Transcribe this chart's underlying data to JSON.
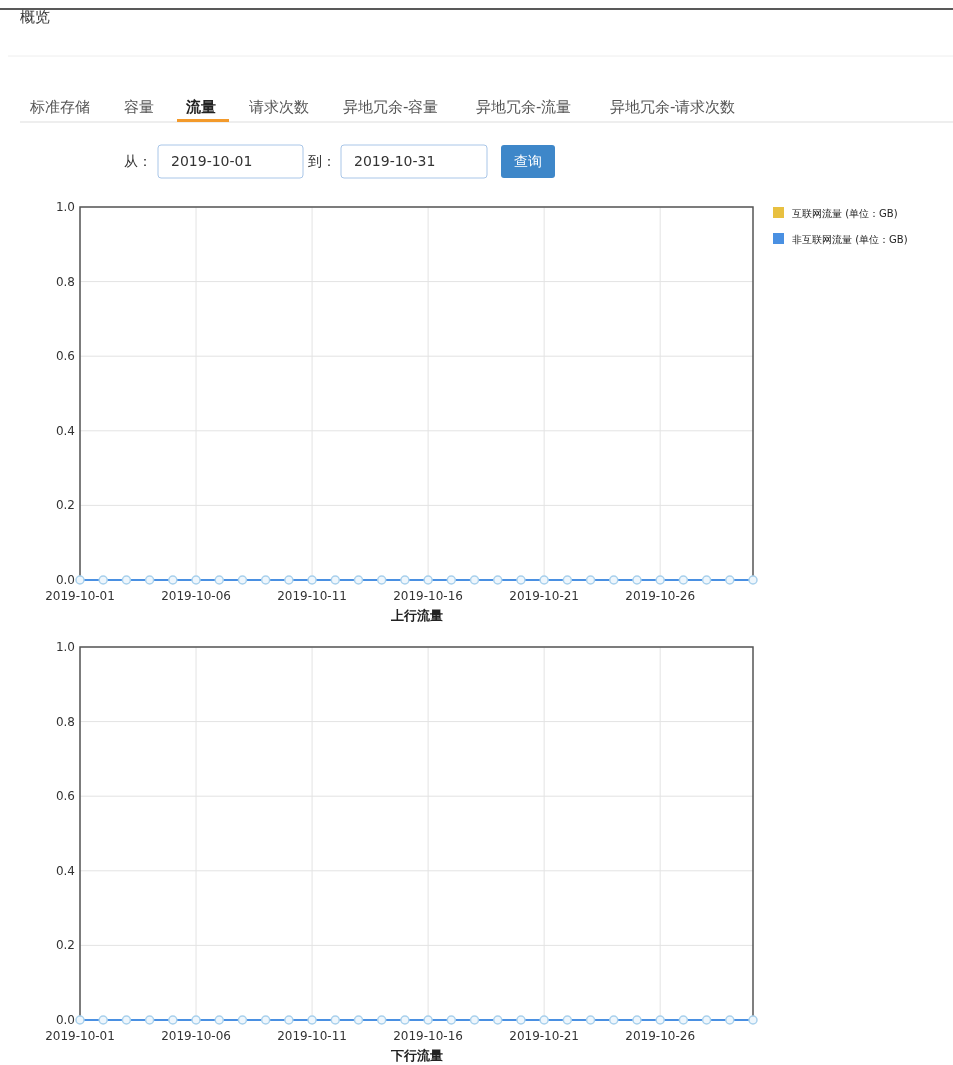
{
  "chart_data": [
    {
      "type": "line",
      "title": "概览",
      "annotations": [
        "标准存储",
        "容量",
        "流量",
        "请求次数",
        "异地冗余-容量",
        "异地冗余-流量",
        "异地冗余-请求次数",
        "从：",
        "2019-10-01",
        "到：",
        "2019-10-31",
        "查询"
      ],
      "xlabel": "上行流量",
      "x": [
        "2019-10-01",
        "2019-10-02",
        "2019-10-03",
        "2019-10-04",
        "2019-10-05",
        "2019-10-06",
        "2019-10-07",
        "2019-10-08",
        "2019-10-09",
        "2019-10-10",
        "2019-10-11",
        "2019-10-12",
        "2019-10-13",
        "2019-10-14",
        "2019-10-15",
        "2019-10-16",
        "2019-10-17",
        "2019-10-18",
        "2019-10-19",
        "2019-10-20",
        "2019-10-21",
        "2019-10-22",
        "2019-10-23",
        "2019-10-24",
        "2019-10-25",
        "2019-10-26",
        "2019-10-27",
        "2019-10-28",
        "2019-10-29",
        "2019-10-30"
      ],
      "series": [
        {
          "name": "互联网流量 (单位：GB)",
          "color": "#e8c040",
          "values": [
            null,
            null,
            null,
            null,
            null,
            null,
            null,
            null,
            null,
            null,
            null,
            null,
            null,
            null,
            null,
            null,
            null,
            null,
            null,
            null,
            null,
            null,
            null,
            null,
            null,
            null,
            null,
            null,
            null,
            null
          ]
        },
        {
          "name": "非互联网流量 (单位：GB)",
          "color": "#4a90e2",
          "values": [
            0,
            0,
            0,
            0,
            0,
            0,
            0,
            0,
            0,
            0,
            0,
            0,
            0,
            0,
            0,
            0,
            0,
            0,
            0,
            0,
            0,
            0,
            0,
            0,
            0,
            0,
            0,
            0,
            0,
            0
          ]
        }
      ],
      "xlim": [
        "2019-10-01",
        "2019-10-30"
      ],
      "xticks": [
        "2019-10-01",
        "2019-10-06",
        "2019-10-11",
        "2019-10-16",
        "2019-10-21",
        "2019-10-26"
      ],
      "ylim": [
        0,
        1
      ],
      "yticks": [
        {
          "value": 0,
          "label": "0.0"
        },
        {
          "value": 0.2,
          "label": "0.2"
        },
        {
          "value": 0.4,
          "label": "0.4"
        },
        {
          "value": 0.6,
          "label": "0.6"
        },
        {
          "value": 0.8,
          "label": "0.8"
        },
        {
          "value": 1,
          "label": "1.0"
        }
      ],
      "grid": true,
      "legend": "right",
      "marker": "circle"
    },
    {
      "type": "line",
      "xlabel": "下行流量",
      "x": [
        "2019-10-01",
        "2019-10-02",
        "2019-10-03",
        "2019-10-04",
        "2019-10-05",
        "2019-10-06",
        "2019-10-07",
        "2019-10-08",
        "2019-10-09",
        "2019-10-10",
        "2019-10-11",
        "2019-10-12",
        "2019-10-13",
        "2019-10-14",
        "2019-10-15",
        "2019-10-16",
        "2019-10-17",
        "2019-10-18",
        "2019-10-19",
        "2019-10-20",
        "2019-10-21",
        "2019-10-22",
        "2019-10-23",
        "2019-10-24",
        "2019-10-25",
        "2019-10-26",
        "2019-10-27",
        "2019-10-28",
        "2019-10-29",
        "2019-10-30"
      ],
      "series": [
        {
          "color": "#4a90e2",
          "values": [
            0,
            0,
            0,
            0,
            0,
            0,
            0,
            0,
            0,
            0,
            0,
            0,
            0,
            0,
            0,
            0,
            0,
            0,
            0,
            0,
            0,
            0,
            0,
            0,
            0,
            0,
            0,
            0,
            0,
            0
          ]
        }
      ],
      "xlim": [
        "2019-10-01",
        "2019-10-30"
      ],
      "xticks": [
        "2019-10-01",
        "2019-10-06",
        "2019-10-11",
        "2019-10-16",
        "2019-10-21",
        "2019-10-26"
      ],
      "ylim": [
        0,
        1
      ],
      "yticks": [
        {
          "value": 0,
          "label": "0.0"
        },
        {
          "value": 0.2,
          "label": "0.2"
        },
        {
          "value": 0.4,
          "label": "0.4"
        },
        {
          "value": 0.6,
          "label": "0.6"
        },
        {
          "value": 0.8,
          "label": "0.8"
        },
        {
          "value": 1,
          "label": "1.0"
        }
      ],
      "grid": true,
      "marker": "circle"
    }
  ]
}
